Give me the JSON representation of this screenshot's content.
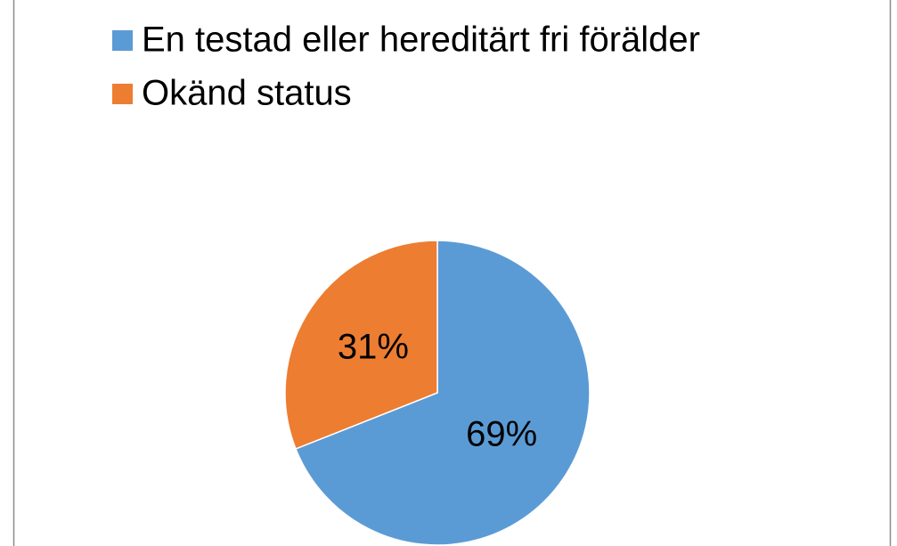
{
  "chart_data": {
    "type": "pie",
    "categories": [
      "En testad eller hereditärt fri förälder",
      "Okänd status"
    ],
    "values": [
      69,
      31
    ],
    "value_labels": [
      "69%",
      "31%"
    ],
    "colors": [
      "#5b9bd5",
      "#ed7d31"
    ],
    "legend": "top"
  }
}
